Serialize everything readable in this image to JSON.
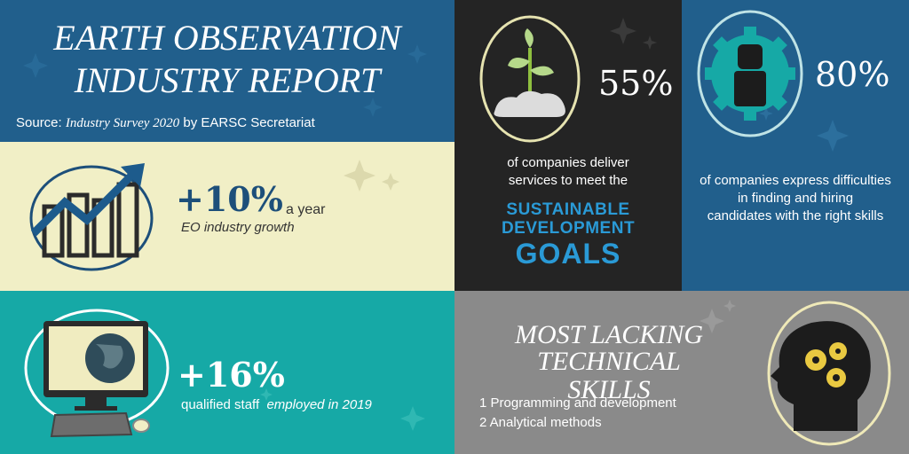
{
  "colors": {
    "navy": "#215f8c",
    "cream": "#f1efc6",
    "teal": "#16a9a6",
    "charcoal": "#242424",
    "gray": "#8a8a8a",
    "dark_blue_icon": "#1d4f7a",
    "sdg_blue": "#2a9ad6"
  },
  "header": {
    "title_line1": "EARTH OBSERVATION",
    "title_line2": "INDUSTRY REPORT",
    "source_prefix": "Source: ",
    "source_italic": "Industry Survey 2020",
    "source_suffix": " by EARSC Secretariat"
  },
  "growth": {
    "stat": "+10%",
    "unit": "a year",
    "caption": "EO industry growth",
    "icon": "bar-chart-growth-icon"
  },
  "staff": {
    "stat": "+16%",
    "caption_normal": "qualified staff",
    "caption_italic": "employed in 2019",
    "icon": "computer-globe-icon"
  },
  "sdg": {
    "stat": "55%",
    "caption_line1": "of companies deliver",
    "caption_line2": "services to meet the",
    "logo_line1": "SUSTAINABLE",
    "logo_line2": "DEVELOPMENT",
    "logo_line3": "GOALS",
    "icon": "plant-sprout-icon"
  },
  "hiring": {
    "stat": "80%",
    "caption_line1": "of companies express difficulties",
    "caption_line2": "in finding and hiring",
    "caption_line3": "candidates with the right skills",
    "icon": "person-gear-icon"
  },
  "skills": {
    "title_line1": "MOST LACKING",
    "title_line2": "TECHNICAL SKILLS",
    "items": [
      "1 Programming and development",
      "2 Analytical methods"
    ],
    "icon": "head-gears-icon"
  }
}
